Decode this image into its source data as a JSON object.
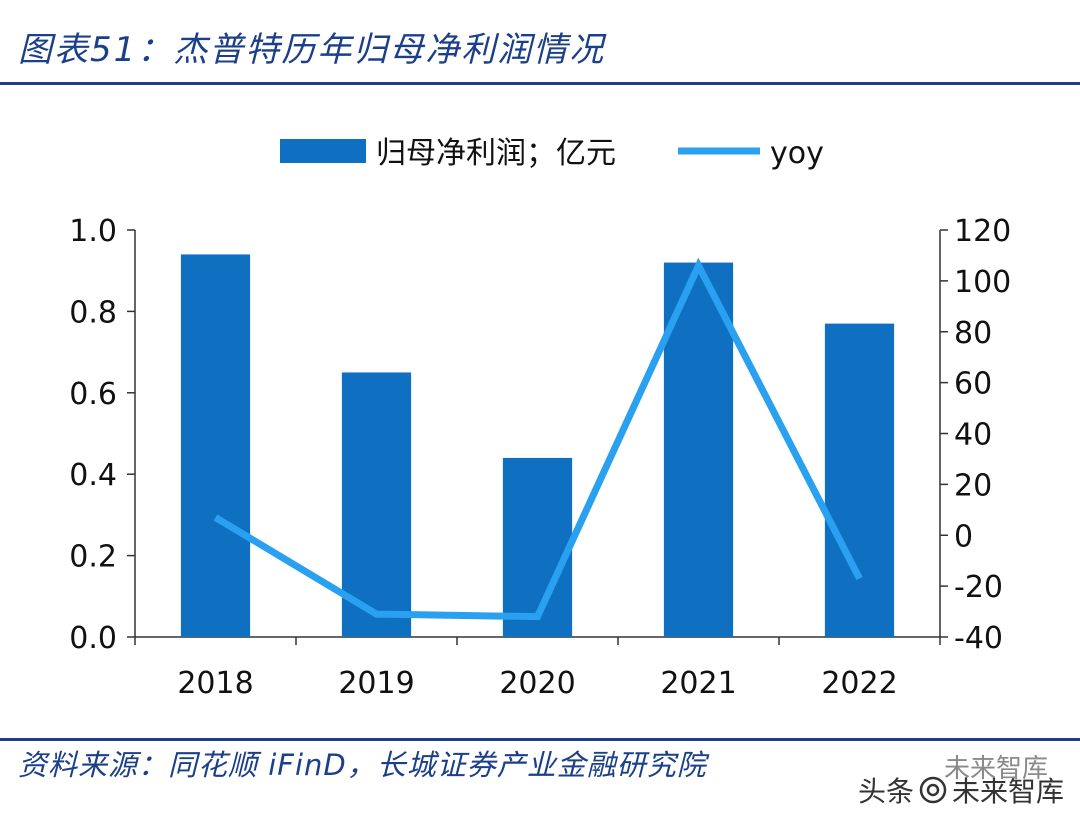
{
  "header": {
    "title": "图表51：杰普特历年归母净利润情况"
  },
  "footer": {
    "source": "资料来源：同花顺 iFinD，长城证券产业金融研究院",
    "watermark_left": "头条",
    "watermark_right": "未来智库",
    "watermark_sub": "未来智库"
  },
  "colors": {
    "bar": "#0f70c1",
    "line": "#2aa0f0",
    "title": "#1c3f8a",
    "axis": "#333333"
  },
  "chart_data": {
    "type": "bar",
    "categories": [
      "2018",
      "2019",
      "2020",
      "2021",
      "2022"
    ],
    "series": [
      {
        "name": "归母净利润；亿元",
        "type": "bar",
        "axis": "left",
        "values": [
          0.94,
          0.65,
          0.44,
          0.92,
          0.77
        ]
      },
      {
        "name": "yoy",
        "type": "line",
        "axis": "right",
        "values": [
          7,
          -31,
          -32,
          106,
          -17
        ]
      }
    ],
    "y_left": {
      "min": 0,
      "max": 1,
      "ticks": [
        "0.0",
        "0.2",
        "0.4",
        "0.6",
        "0.8",
        "1.0"
      ]
    },
    "y_right": {
      "min": -40,
      "max": 120,
      "ticks": [
        "-40",
        "-20",
        "0",
        "20",
        "40",
        "60",
        "80",
        "100",
        "120"
      ]
    },
    "legend": {
      "position": "top"
    },
    "grid": false
  }
}
